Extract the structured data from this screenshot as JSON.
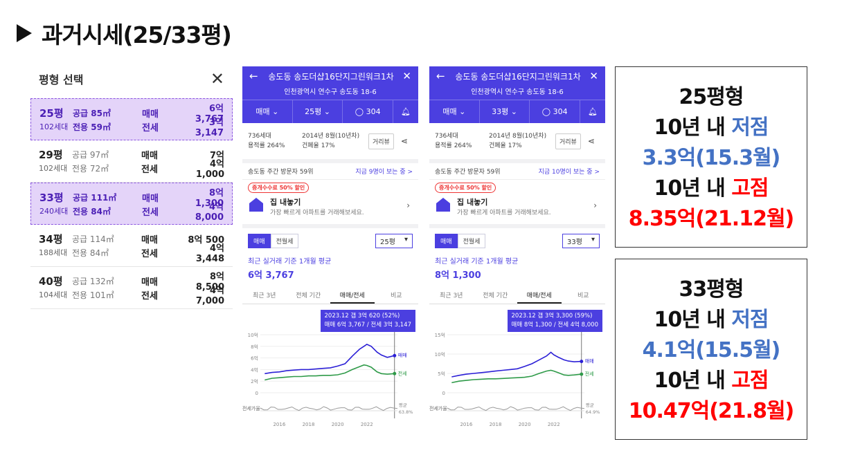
{
  "title": "과거시세(25/33평)",
  "size_panel": {
    "title": "평형 선택",
    "rows": [
      {
        "py": "25평",
        "hh": "102세대",
        "supply": "공급 85㎡",
        "excl": "전용 59㎡",
        "k1": "매매",
        "p1": "6억 3,767",
        "k2": "전세",
        "p2": "3억 3,147",
        "selected": true
      },
      {
        "py": "29평",
        "hh": "102세대",
        "supply": "공급 97㎡",
        "excl": "전용 72㎡",
        "k1": "매매",
        "p1": "7억",
        "k2": "전세",
        "p2": "4억 1,000",
        "selected": false
      },
      {
        "py": "33평",
        "hh": "240세대",
        "supply": "공급 111㎡",
        "excl": "전용 84㎡",
        "k1": "매매",
        "p1": "8억 1,300",
        "k2": "전세",
        "p2": "4억 8,000",
        "selected": true
      },
      {
        "py": "34평",
        "hh": "188세대",
        "supply": "공급 114㎡",
        "excl": "전용 84㎡",
        "k1": "매매",
        "p1": "8억 500",
        "k2": "전세",
        "p2": "4억 3,448",
        "selected": false
      },
      {
        "py": "40평",
        "hh": "104세대",
        "supply": "공급 132㎡",
        "excl": "전용 101㎡",
        "k1": "매매",
        "p1": "8억 8,500",
        "k2": "전세",
        "p2": "4억 7,000",
        "selected": false
      }
    ]
  },
  "phones": [
    {
      "name": "송도동 송도더샵16단지그린워크1차",
      "address": "인천광역시 연수구 송도동 18-6",
      "tab_trade": "매매",
      "tab_size": "25평",
      "comments": "304",
      "households": "736세대",
      "floor_ratio": "용적률 264%",
      "built": "2014년 8월(10년차)",
      "coverage": "건폐율 17%",
      "street_btn": "거리뷰",
      "visit": "송도동 주간 방문자 59위",
      "visit_link": "지금 9명이 보는 중 >",
      "promo_tag": "중개수수료 50% 할인",
      "promo_title": "집 내놓기",
      "promo_sub": "가장 빠르게 아파트를 거래해보세요.",
      "t_sale": "매매",
      "t_jeonse": "전월세",
      "dd": "25평",
      "avg_label": "최근 실거래 기준 1개월 평균",
      "avg_value": "6억 3,767",
      "periods": [
        "최근 3년",
        "전체 기간",
        "매매/전세",
        "비교"
      ],
      "tip1": "2023.12  갭 3억 620 (52%)",
      "tip2": "매매 6억 3,767 / 전세 3억 3,147",
      "legend_sale": "매매",
      "legend_jeonse": "전세",
      "ratio_label": "전세가율",
      "ratio_avg": "평균",
      "ratio_val": "63.8%",
      "chart_data": {
        "type": "line",
        "x": [
          2015.0,
          2015.5,
          2016.0,
          2016.5,
          2017.0,
          2017.5,
          2018.0,
          2018.5,
          2019.0,
          2019.5,
          2020.0,
          2020.5,
          2021.0,
          2021.5,
          2021.8,
          2022.0,
          2022.3,
          2022.7,
          2023.0,
          2023.4,
          2023.9
        ],
        "series": [
          {
            "name": "매매",
            "values": [
              3.3,
              3.5,
              3.6,
              3.8,
              3.9,
              4.0,
              4.0,
              4.1,
              4.2,
              4.3,
              4.6,
              5.0,
              6.3,
              7.5,
              8.0,
              8.35,
              8.0,
              7.0,
              6.5,
              6.1,
              6.4
            ]
          },
          {
            "name": "전세",
            "values": [
              2.2,
              2.5,
              2.6,
              2.7,
              2.8,
              2.8,
              2.9,
              2.9,
              3.0,
              3.0,
              3.1,
              3.4,
              4.0,
              4.5,
              4.8,
              4.7,
              4.4,
              3.6,
              3.3,
              3.2,
              3.3
            ]
          }
        ],
        "yticks": [
          "0",
          "2억",
          "4억",
          "6억",
          "8억",
          "10억"
        ],
        "xticks": [
          "2016",
          "2018",
          "2020",
          "2022"
        ],
        "ylim": [
          0,
          10
        ]
      }
    },
    {
      "name": "송도동 송도더샵16단지그린워크1차",
      "address": "인천광역시 연수구 송도동 18-6",
      "tab_trade": "매매",
      "tab_size": "33평",
      "comments": "304",
      "households": "736세대",
      "floor_ratio": "용적률 264%",
      "built": "2014년 8월(10년차)",
      "coverage": "건폐율 17%",
      "street_btn": "거리뷰",
      "visit": "송도동 주간 방문자 59위",
      "visit_link": "지금 10명이 보는 중 >",
      "promo_tag": "중개수수료 50% 할인",
      "promo_title": "집 내놓기",
      "promo_sub": "가장 빠르게 아파트를 거래해보세요.",
      "t_sale": "매매",
      "t_jeonse": "전월세",
      "dd": "33평",
      "avg_label": "최근 실거래 기준 1개월 평균",
      "avg_value": "8억 1,300",
      "periods": [
        "최근 3년",
        "전체 기간",
        "매매/전세",
        "비교"
      ],
      "tip1": "2023.12  갭 3억 3,300 (59%)",
      "tip2": "매매 8억 1,300 / 전세 4억 8,000",
      "legend_sale": "매매",
      "legend_jeonse": "전세",
      "ratio_label": "전세가율",
      "ratio_avg": "평균",
      "ratio_val": "64.9%",
      "chart_data": {
        "type": "line",
        "x": [
          2015.0,
          2015.5,
          2016.0,
          2016.5,
          2017.0,
          2017.5,
          2018.0,
          2018.5,
          2019.0,
          2019.5,
          2020.0,
          2020.5,
          2021.0,
          2021.5,
          2021.8,
          2022.0,
          2022.3,
          2022.7,
          2023.0,
          2023.4,
          2023.9
        ],
        "series": [
          {
            "name": "매매",
            "values": [
              4.1,
              4.5,
              4.8,
              5.0,
              5.2,
              5.4,
              5.6,
              5.8,
              6.0,
              6.2,
              6.8,
              7.5,
              8.5,
              9.5,
              10.47,
              9.8,
              9.2,
              8.5,
              8.2,
              8.0,
              8.1
            ]
          },
          {
            "name": "전세",
            "values": [
              2.6,
              3.0,
              3.2,
              3.4,
              3.5,
              3.6,
              3.6,
              3.7,
              3.8,
              3.9,
              4.0,
              4.3,
              5.0,
              5.6,
              5.8,
              5.6,
              5.2,
              4.6,
              4.5,
              4.6,
              4.8
            ]
          }
        ],
        "yticks": [
          "0",
          "5억",
          "10억",
          "15억"
        ],
        "xticks": [
          "2016",
          "2018",
          "2020",
          "2022"
        ],
        "ylim": [
          0,
          15
        ]
      }
    }
  ],
  "summaries": [
    {
      "head": "25평형",
      "low_prefix": "10년 내 ",
      "low_word": "저점",
      "low_val": "3.3억(15.3월)",
      "high_prefix": "10년 내 ",
      "high_word": "고점",
      "high_val": "8.35억(21.12월)"
    },
    {
      "head": "33평형",
      "low_prefix": "10년 내 ",
      "low_word": "저점",
      "low_val": "4.1억(15.5월)",
      "high_prefix": "10년 내 ",
      "high_word": "고점",
      "high_val": "10.47억(21.8월)"
    }
  ],
  "colors": {
    "brand": "#4b3fe0",
    "sale_line": "#2b1fd6",
    "jeonse_line": "#2e9a48",
    "low": "#4472c4",
    "high": "#ff0000"
  }
}
